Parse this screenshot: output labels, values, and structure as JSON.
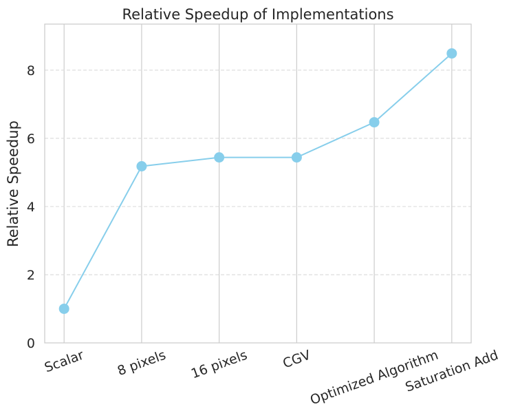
{
  "chart_data": {
    "type": "line",
    "title": "Relative Speedup of Implementations",
    "xlabel": "",
    "ylabel": "Relative Speedup",
    "categories": [
      "Scalar",
      "8 pixels",
      "16 pixels",
      "CGV",
      "Optimized Algorithm",
      "Saturation Add"
    ],
    "values": [
      1.0,
      5.18,
      5.44,
      5.44,
      6.47,
      8.49
    ],
    "ylim": [
      0,
      9.35
    ],
    "yticks": [
      0,
      2,
      4,
      6,
      8
    ],
    "grid": {
      "x": "solid",
      "y": "dashed"
    },
    "x_tick_rotation_deg": 20,
    "color": "#87ceeb",
    "marker": "circle"
  }
}
